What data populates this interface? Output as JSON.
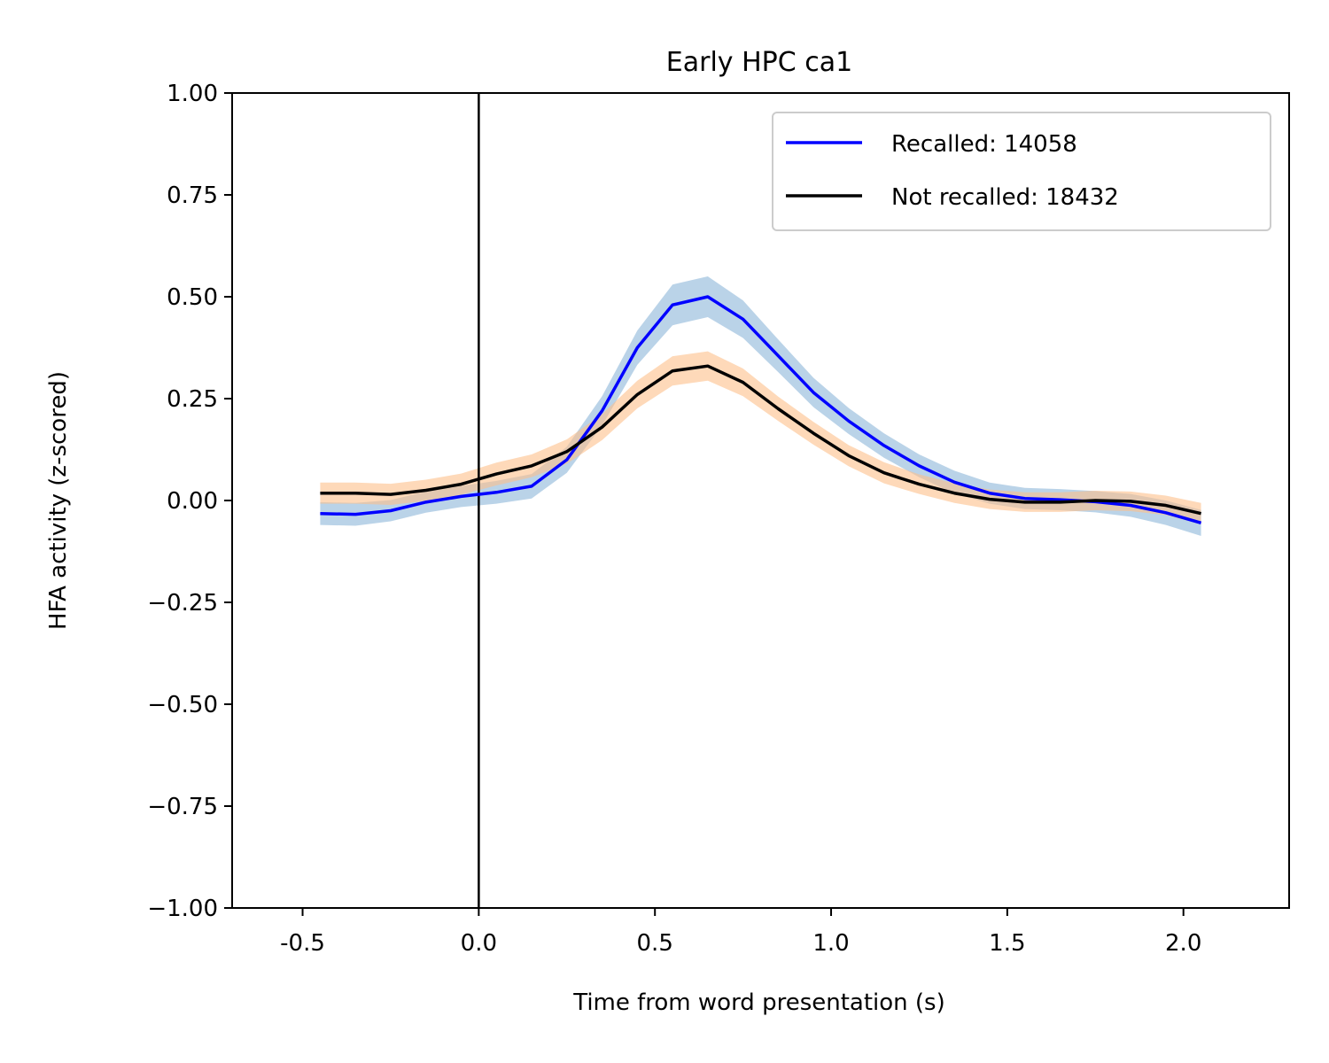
{
  "chart_data": {
    "type": "line",
    "title": "Early HPC ca1",
    "xlabel": "Time from word presentation (s)",
    "ylabel": "HFA activity (z-scored)",
    "xlim": [
      -0.7,
      2.3
    ],
    "ylim": [
      -1.0,
      1.0
    ],
    "x_ticks": [
      -0.5,
      0.0,
      0.5,
      1.0,
      1.5,
      2.0
    ],
    "x_tick_labels": [
      "-0.5",
      "0.0",
      "0.5",
      "1.0",
      "1.5",
      "2.0"
    ],
    "y_ticks": [
      1.0,
      0.75,
      0.5,
      0.25,
      0.0,
      -0.25,
      -0.5,
      -0.75,
      -1.0
    ],
    "y_tick_labels": [
      "1.00",
      "0.75",
      "0.50",
      "0.25",
      "0.00",
      "−0.25",
      "−0.50",
      "−0.75",
      "−1.00"
    ],
    "grid": false,
    "legend_position": "top-right",
    "vertical_line_x": 0.0,
    "x": [
      -0.45,
      -0.35,
      -0.25,
      -0.15,
      -0.05,
      0.05,
      0.15,
      0.25,
      0.35,
      0.45,
      0.55,
      0.65,
      0.75,
      0.85,
      0.95,
      1.05,
      1.15,
      1.25,
      1.35,
      1.45,
      1.55,
      1.65,
      1.75,
      1.85,
      1.95,
      2.05
    ],
    "series": [
      {
        "name": "Recalled: 14058",
        "color": "#0000ff",
        "band_color": "#8fb8da",
        "values": [
          -0.032,
          -0.034,
          -0.025,
          -0.004,
          0.01,
          0.02,
          0.035,
          0.1,
          0.22,
          0.375,
          0.48,
          0.5,
          0.445,
          0.355,
          0.265,
          0.195,
          0.135,
          0.085,
          0.045,
          0.018,
          0.005,
          0.002,
          -0.003,
          -0.012,
          -0.03,
          -0.055
        ],
        "band_half_width": [
          0.028,
          0.028,
          0.026,
          0.026,
          0.026,
          0.028,
          0.03,
          0.032,
          0.036,
          0.042,
          0.05,
          0.05,
          0.046,
          0.04,
          0.036,
          0.032,
          0.03,
          0.028,
          0.028,
          0.026,
          0.026,
          0.026,
          0.026,
          0.028,
          0.03,
          0.032
        ]
      },
      {
        "name": "Not recalled: 18432",
        "color": "#000000",
        "band_color": "#fdbf8a",
        "values": [
          0.018,
          0.018,
          0.015,
          0.025,
          0.04,
          0.065,
          0.085,
          0.12,
          0.18,
          0.26,
          0.318,
          0.33,
          0.29,
          0.225,
          0.165,
          0.11,
          0.068,
          0.04,
          0.018,
          0.003,
          -0.004,
          -0.004,
          0.0,
          -0.002,
          -0.012,
          -0.032
        ],
        "band_half_width": [
          0.026,
          0.026,
          0.026,
          0.026,
          0.026,
          0.028,
          0.028,
          0.03,
          0.032,
          0.034,
          0.036,
          0.036,
          0.034,
          0.03,
          0.028,
          0.026,
          0.026,
          0.024,
          0.024,
          0.024,
          0.024,
          0.024,
          0.024,
          0.024,
          0.024,
          0.026
        ]
      }
    ]
  }
}
